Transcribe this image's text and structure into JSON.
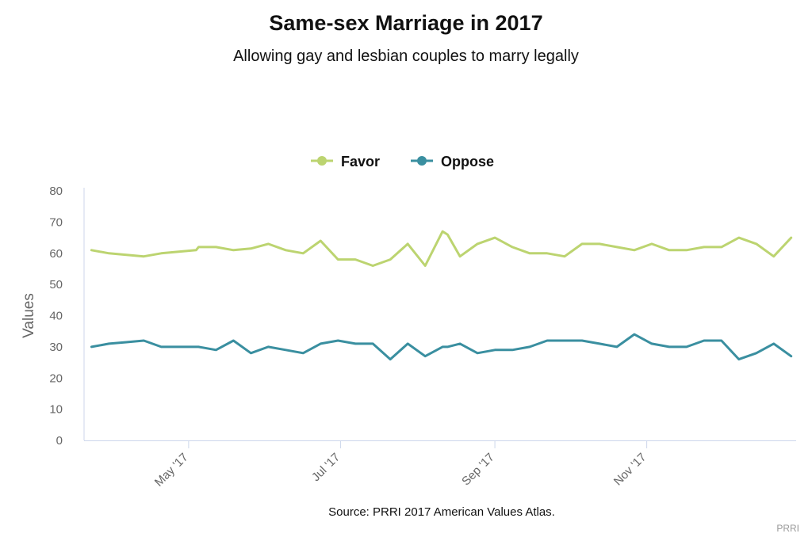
{
  "credit": "PRRI",
  "chart_data": {
    "type": "line",
    "title": "Same-sex Marriage in 2017",
    "subtitle": "Allowing gay and lesbian couples to marry legally",
    "source": "Source: PRRI 2017 American Values Atlas.",
    "ylabel": "Values",
    "ylim": [
      0,
      80
    ],
    "yticks": [
      0,
      10,
      20,
      30,
      40,
      50,
      60,
      70,
      80
    ],
    "xlim": [
      "2017-03-20",
      "2017-12-31"
    ],
    "xticks": [
      {
        "date": "2017-05-01",
        "label": "May '17"
      },
      {
        "date": "2017-07-01",
        "label": "Jul '17"
      },
      {
        "date": "2017-09-01",
        "label": "Sep '17"
      },
      {
        "date": "2017-11-01",
        "label": "Nov '17"
      }
    ],
    "legend": "top-center",
    "grid": false,
    "series": [
      {
        "name": "Favor",
        "color": "#bcd470",
        "points": [
          [
            "2017-03-23",
            61
          ],
          [
            "2017-03-30",
            60
          ],
          [
            "2017-04-06",
            59.5
          ],
          [
            "2017-04-13",
            59
          ],
          [
            "2017-04-20",
            60
          ],
          [
            "2017-04-27",
            60.5
          ],
          [
            "2017-05-04",
            61
          ],
          [
            "2017-05-05",
            62
          ],
          [
            "2017-05-12",
            62
          ],
          [
            "2017-05-19",
            61
          ],
          [
            "2017-05-26",
            61.5
          ],
          [
            "2017-06-02",
            63
          ],
          [
            "2017-06-09",
            61
          ],
          [
            "2017-06-16",
            60
          ],
          [
            "2017-06-23",
            64
          ],
          [
            "2017-06-30",
            58
          ],
          [
            "2017-07-07",
            58
          ],
          [
            "2017-07-14",
            56
          ],
          [
            "2017-07-21",
            58
          ],
          [
            "2017-07-28",
            63
          ],
          [
            "2017-08-04",
            56
          ],
          [
            "2017-08-11",
            67
          ],
          [
            "2017-08-13",
            66
          ],
          [
            "2017-08-18",
            59
          ],
          [
            "2017-08-25",
            63
          ],
          [
            "2017-09-01",
            65
          ],
          [
            "2017-09-08",
            62
          ],
          [
            "2017-09-15",
            60
          ],
          [
            "2017-09-22",
            60
          ],
          [
            "2017-09-29",
            59
          ],
          [
            "2017-10-06",
            63
          ],
          [
            "2017-10-13",
            63
          ],
          [
            "2017-10-20",
            62
          ],
          [
            "2017-10-27",
            61
          ],
          [
            "2017-11-03",
            63
          ],
          [
            "2017-11-10",
            61
          ],
          [
            "2017-11-17",
            61
          ],
          [
            "2017-11-24",
            62
          ],
          [
            "2017-12-01",
            62
          ],
          [
            "2017-12-08",
            65
          ],
          [
            "2017-12-15",
            63
          ],
          [
            "2017-12-22",
            59
          ],
          [
            "2017-12-29",
            65
          ]
        ]
      },
      {
        "name": "Oppose",
        "color": "#3a8fa0",
        "points": [
          [
            "2017-03-23",
            30
          ],
          [
            "2017-03-30",
            31
          ],
          [
            "2017-04-06",
            31.5
          ],
          [
            "2017-04-13",
            32
          ],
          [
            "2017-04-20",
            30
          ],
          [
            "2017-04-27",
            30
          ],
          [
            "2017-05-04",
            30
          ],
          [
            "2017-05-05",
            30
          ],
          [
            "2017-05-12",
            29
          ],
          [
            "2017-05-19",
            32
          ],
          [
            "2017-05-26",
            28
          ],
          [
            "2017-06-02",
            30
          ],
          [
            "2017-06-09",
            29
          ],
          [
            "2017-06-16",
            28
          ],
          [
            "2017-06-23",
            31
          ],
          [
            "2017-06-30",
            32
          ],
          [
            "2017-07-07",
            31
          ],
          [
            "2017-07-14",
            31
          ],
          [
            "2017-07-21",
            26
          ],
          [
            "2017-07-28",
            31
          ],
          [
            "2017-08-04",
            27
          ],
          [
            "2017-08-11",
            30
          ],
          [
            "2017-08-13",
            30
          ],
          [
            "2017-08-18",
            31
          ],
          [
            "2017-08-25",
            28
          ],
          [
            "2017-09-01",
            29
          ],
          [
            "2017-09-08",
            29
          ],
          [
            "2017-09-15",
            30
          ],
          [
            "2017-09-22",
            32
          ],
          [
            "2017-09-29",
            32
          ],
          [
            "2017-10-06",
            32
          ],
          [
            "2017-10-13",
            31
          ],
          [
            "2017-10-20",
            30
          ],
          [
            "2017-10-27",
            34
          ],
          [
            "2017-11-03",
            31
          ],
          [
            "2017-11-10",
            30
          ],
          [
            "2017-11-17",
            30
          ],
          [
            "2017-11-24",
            32
          ],
          [
            "2017-12-01",
            32
          ],
          [
            "2017-12-08",
            26
          ],
          [
            "2017-12-15",
            28
          ],
          [
            "2017-12-22",
            31
          ],
          [
            "2017-12-29",
            27
          ]
        ]
      }
    ]
  }
}
